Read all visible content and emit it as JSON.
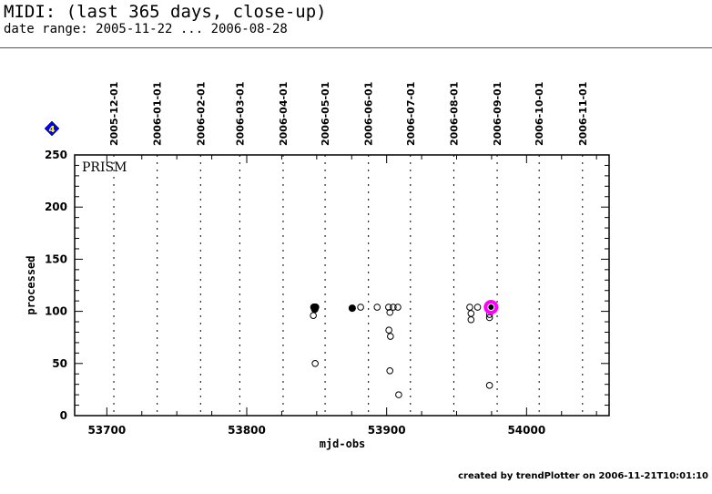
{
  "header": {
    "title": "MIDI: (last 365 days, close-up)",
    "subtitle": "date range: 2005-11-22 ... 2006-08-28"
  },
  "footer": "created by trendPlotter on 2006-11-21T10:01:10",
  "badge": {
    "icon": "blue-diamond-icon",
    "text": "4",
    "color": "#0000ff",
    "text_color": "#ffff00"
  },
  "chart_data": {
    "type": "scatter",
    "title": "",
    "panel_label": "PRISM",
    "xlabel": "mjd-obs",
    "ylabel": "processed",
    "xlim": [
      53677,
      54059
    ],
    "ylim": [
      0,
      250
    ],
    "xticks": [
      53700,
      53800,
      53900,
      54000
    ],
    "yticks": [
      0,
      50,
      100,
      150,
      200,
      250
    ],
    "grid": "vertical dotted lines at month starts",
    "date_lines": [
      {
        "label": "2005-12-01",
        "mjd": 53705
      },
      {
        "label": "2006-01-01",
        "mjd": 53736
      },
      {
        "label": "2006-02-01",
        "mjd": 53767
      },
      {
        "label": "2006-03-01",
        "mjd": 53795
      },
      {
        "label": "2006-04-01",
        "mjd": 53826
      },
      {
        "label": "2006-05-01",
        "mjd": 53856
      },
      {
        "label": "2006-06-01",
        "mjd": 53887
      },
      {
        "label": "2006-07-01",
        "mjd": 53917
      },
      {
        "label": "2006-08-01",
        "mjd": 53948
      },
      {
        "label": "2006-09-01",
        "mjd": 53979
      },
      {
        "label": "2006-10-01",
        "mjd": 54009
      },
      {
        "label": "2006-11-01",
        "mjd": 54040
      }
    ],
    "points": [
      {
        "x": 53848.0,
        "y": 104,
        "filled": true
      },
      {
        "x": 53848.6,
        "y": 104,
        "filled": true
      },
      {
        "x": 53849.2,
        "y": 104,
        "filled": true
      },
      {
        "x": 53848.6,
        "y": 102,
        "filled": true
      },
      {
        "x": 53847.6,
        "y": 96
      },
      {
        "x": 53848.9,
        "y": 50
      },
      {
        "x": 53875.4,
        "y": 103,
        "filled": true
      },
      {
        "x": 53881.4,
        "y": 104
      },
      {
        "x": 53893.2,
        "y": 104
      },
      {
        "x": 53901.4,
        "y": 104
      },
      {
        "x": 53904.7,
        "y": 104
      },
      {
        "x": 53908.0,
        "y": 104
      },
      {
        "x": 53902.3,
        "y": 99
      },
      {
        "x": 53901.6,
        "y": 82
      },
      {
        "x": 53902.7,
        "y": 76
      },
      {
        "x": 53902.3,
        "y": 43
      },
      {
        "x": 53908.6,
        "y": 20
      },
      {
        "x": 53959.4,
        "y": 104
      },
      {
        "x": 53965.0,
        "y": 104
      },
      {
        "x": 53960.3,
        "y": 98
      },
      {
        "x": 53960.3,
        "y": 92
      },
      {
        "x": 53973.5,
        "y": 97
      },
      {
        "x": 53973.5,
        "y": 94
      },
      {
        "x": 53973.5,
        "y": 29
      },
      {
        "x": 53974.6,
        "y": 104,
        "highlight": true
      }
    ],
    "highlight_color": "#ff00ff"
  }
}
